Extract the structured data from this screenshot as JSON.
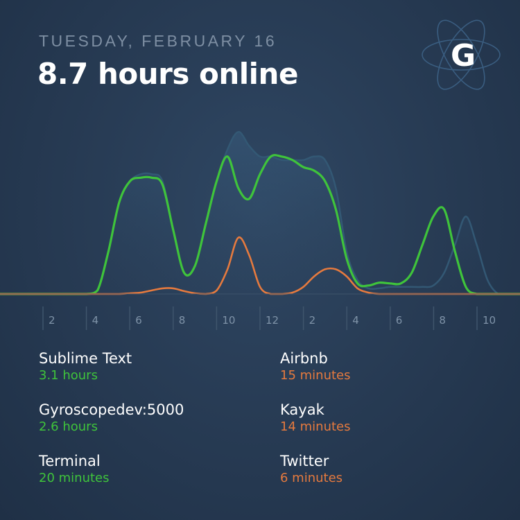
{
  "header": {
    "date": "TUESDAY, FEBRUARY 16",
    "headline": "8.7 hours online"
  },
  "logo": {
    "letter": "G",
    "icon": "atom-icon"
  },
  "colors": {
    "background": "#283c55",
    "green": "#3fc43b",
    "orange": "#e67a3e",
    "total": "#355670",
    "muted": "#7e8fa3"
  },
  "chart_data": {
    "type": "area",
    "x_ticks": [
      "2",
      "4",
      "6",
      "8",
      "10",
      "12",
      "2",
      "4",
      "6",
      "8",
      "10"
    ],
    "x": [
      0,
      1,
      2,
      3,
      4,
      4.5,
      5,
      5.5,
      6,
      6.5,
      7,
      7.5,
      8,
      8.5,
      9,
      9.5,
      10,
      10.5,
      11,
      11.5,
      12,
      12.5,
      13,
      13.5,
      14,
      14.5,
      15,
      15.5,
      16,
      16.5,
      17,
      17.5,
      18,
      18.5,
      19,
      19.5,
      20,
      20.5,
      21,
      21.5,
      22,
      22.5,
      23,
      23.5,
      24
    ],
    "series": [
      {
        "role": "total",
        "values": [
          0,
          0,
          0,
          0,
          0,
          0.05,
          0.6,
          1.3,
          1.6,
          1.7,
          1.7,
          1.6,
          0.9,
          0.3,
          0.4,
          1.0,
          1.6,
          2.05,
          2.3,
          2.1,
          1.95,
          1.95,
          1.9,
          1.9,
          1.9,
          1.95,
          1.9,
          1.5,
          0.6,
          0.2,
          0.08,
          0.08,
          0.1,
          0.1,
          0.1,
          0.1,
          0.12,
          0.3,
          0.7,
          1.1,
          0.7,
          0.2,
          0,
          0,
          0
        ]
      },
      {
        "role": "productive",
        "values": [
          0,
          0,
          0,
          0,
          0,
          0.05,
          0.6,
          1.3,
          1.6,
          1.65,
          1.65,
          1.55,
          0.9,
          0.3,
          0.4,
          1.0,
          1.6,
          1.95,
          1.5,
          1.35,
          1.7,
          1.95,
          1.95,
          1.9,
          1.8,
          1.75,
          1.6,
          1.2,
          0.5,
          0.15,
          0.12,
          0.16,
          0.15,
          0.15,
          0.3,
          0.7,
          1.1,
          1.2,
          0.6,
          0.1,
          0,
          0,
          0,
          0,
          0
        ]
      },
      {
        "role": "distracting",
        "values": [
          0,
          0,
          0,
          0,
          0,
          0,
          0,
          0,
          0.01,
          0.02,
          0.05,
          0.08,
          0.08,
          0.04,
          0.01,
          0,
          0.05,
          0.35,
          0.8,
          0.55,
          0.1,
          0,
          0,
          0.02,
          0.1,
          0.25,
          0.35,
          0.35,
          0.25,
          0.08,
          0.02,
          0,
          0,
          0,
          0,
          0,
          0,
          0,
          0,
          0,
          0,
          0,
          0,
          0,
          0
        ]
      }
    ],
    "ylim": [
      0,
      2.4
    ]
  },
  "stats": {
    "productive": [
      {
        "name": "Sublime Text",
        "value": "3.1 hours"
      },
      {
        "name": "Gyroscopedev:5000",
        "value": "2.6 hours"
      },
      {
        "name": "Terminal",
        "value": "20 minutes"
      }
    ],
    "distracting": [
      {
        "name": "Airbnb",
        "value": "15 minutes"
      },
      {
        "name": "Kayak",
        "value": "14 minutes"
      },
      {
        "name": "Twitter",
        "value": "6 minutes"
      }
    ]
  }
}
